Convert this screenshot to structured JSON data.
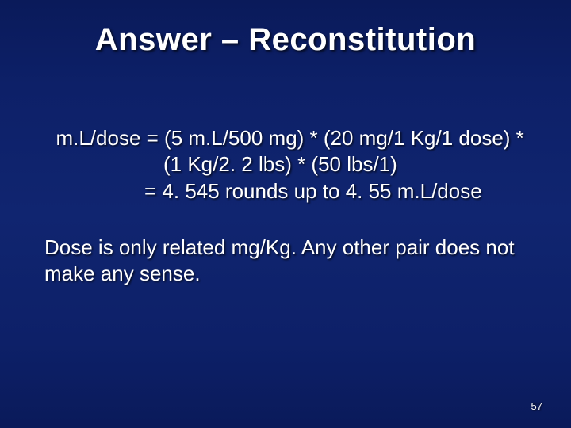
{
  "slide": {
    "background_gradient": [
      "#0a1a5a",
      "#0d2068",
      "#102570",
      "#0d2068",
      "#0a1a5a"
    ],
    "text_color": "#ffffff",
    "text_shadow_color": "rgba(0,0,0,0.7)",
    "title": {
      "text": "Answer – Reconstitution",
      "font_size": 40,
      "font_weight": "bold"
    },
    "body": {
      "font_size": 26,
      "line1": "  m.L/dose = (5 m.L/500 mg) * (20 mg/1 Kg/1 dose) *",
      "line2": "(1 Kg/2. 2 lbs) * (50 lbs/1)",
      "line3": "= 4. 545 rounds up to 4. 55 m.L/dose",
      "para2": "Dose is only related mg/Kg. Any other pair does not make any sense."
    },
    "page_number": "57"
  }
}
